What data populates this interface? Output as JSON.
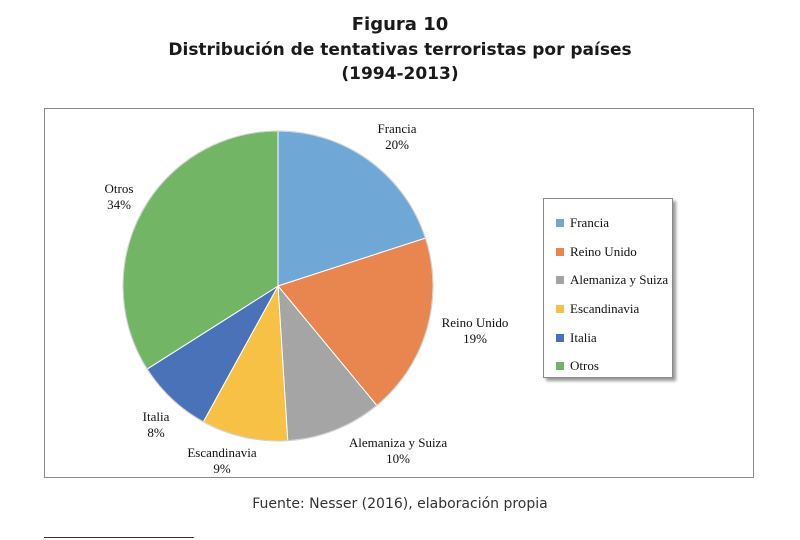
{
  "figure": {
    "number": "Figura 10",
    "title": "Distribución de tentativas terroristas por países",
    "period": "(1994-2013)"
  },
  "chart_data": {
    "type": "pie",
    "slices": [
      {
        "label": "Francia",
        "value": 20,
        "value_label": "20%",
        "color": "#6fa8d6"
      },
      {
        "label": "Reino Unido",
        "value": 19,
        "value_label": "19%",
        "color": "#e9854f"
      },
      {
        "label": "Alemaniza y Suiza",
        "value": 10,
        "value_label": "10%",
        "color": "#a5a5a5"
      },
      {
        "label": "Escandinavia",
        "value": 9,
        "value_label": "9%",
        "color": "#f7c146"
      },
      {
        "label": "Italia",
        "value": 8,
        "value_label": "8%",
        "color": "#4a72b8"
      },
      {
        "label": "Otros",
        "value": 34,
        "value_label": "34%",
        "color": "#72b564"
      }
    ],
    "legend_position": "right"
  },
  "source": "Fuente: Nesser (2016), elaboración propia"
}
